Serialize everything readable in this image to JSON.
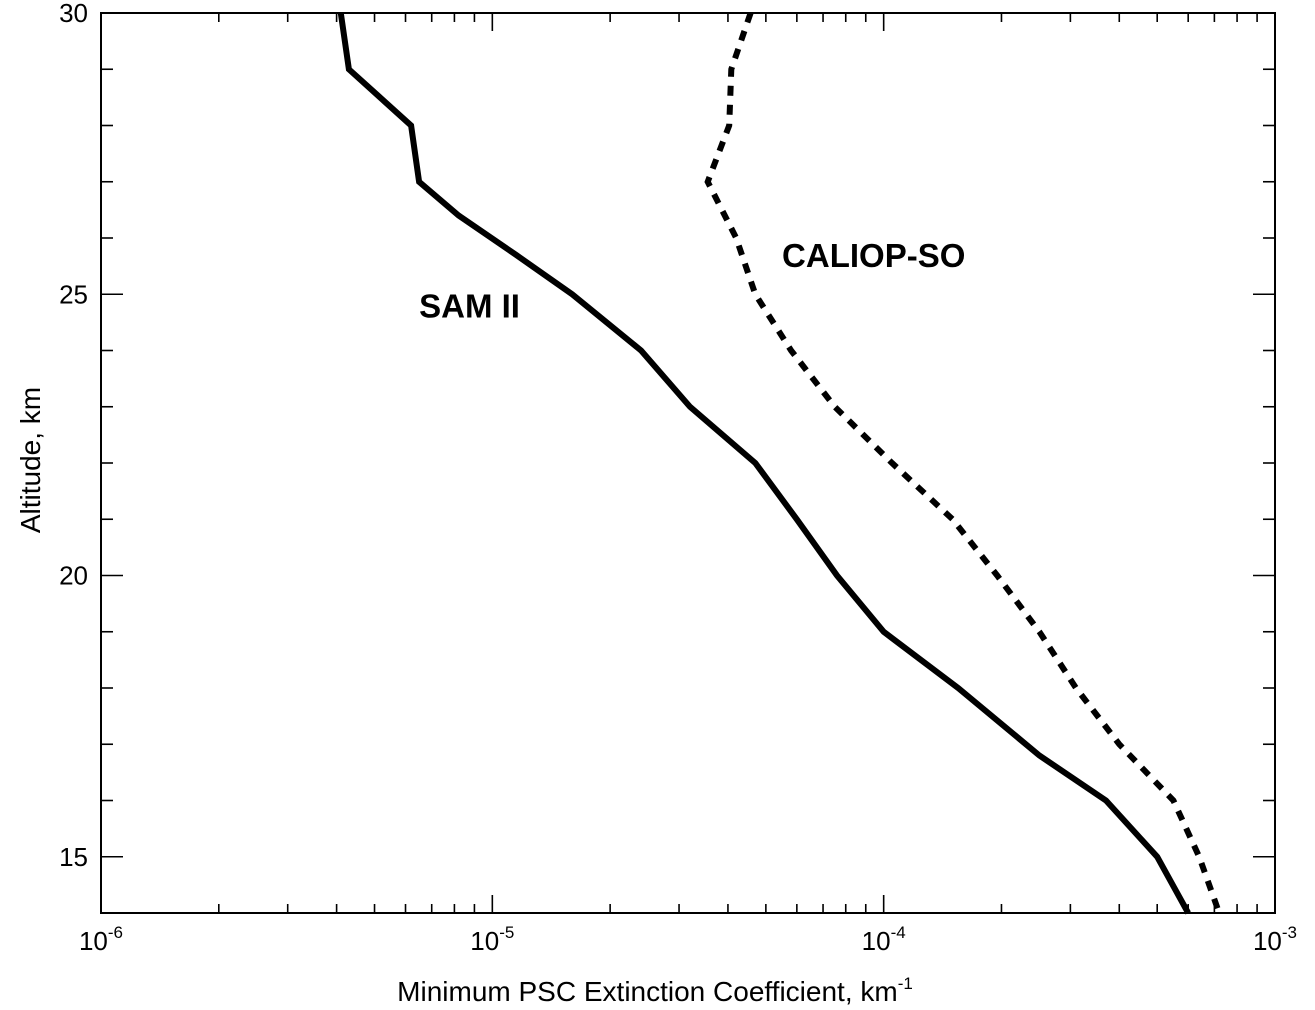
{
  "chart_data": {
    "type": "line",
    "x_scale": "log",
    "xlim": [
      1e-06,
      0.001
    ],
    "ylim": [
      14,
      30
    ],
    "xlabel": "Minimum PSC Extinction Coefficient, km",
    "xlabel_sup": "-1",
    "ylabel": "Altitude, km",
    "x_tick_labels": [
      {
        "value": 1e-06,
        "base": "10",
        "exp": "-6"
      },
      {
        "value": 1e-05,
        "base": "10",
        "exp": "-5"
      },
      {
        "value": 0.0001,
        "base": "10",
        "exp": "-4"
      },
      {
        "value": 0.001,
        "base": "10",
        "exp": "-3"
      }
    ],
    "y_ticks": [
      15,
      20,
      25,
      30
    ],
    "y_minor_step": 1,
    "grid": false,
    "series": [
      {
        "name": "SAM II",
        "style": "solid",
        "color": "#000000",
        "points": [
          {
            "x": 4.1e-06,
            "y": 30
          },
          {
            "x": 4.3e-06,
            "y": 29
          },
          {
            "x": 6.2e-06,
            "y": 28
          },
          {
            "x": 6.5e-06,
            "y": 27
          },
          {
            "x": 8.2e-06,
            "y": 26.4
          },
          {
            "x": 1.15e-05,
            "y": 25.7
          },
          {
            "x": 1.6e-05,
            "y": 25
          },
          {
            "x": 2.4e-05,
            "y": 24
          },
          {
            "x": 3.2e-05,
            "y": 23
          },
          {
            "x": 4.7e-05,
            "y": 22
          },
          {
            "x": 6e-05,
            "y": 21
          },
          {
            "x": 7.6e-05,
            "y": 20
          },
          {
            "x": 0.0001,
            "y": 19
          },
          {
            "x": 0.000155,
            "y": 18
          },
          {
            "x": 0.00025,
            "y": 16.8
          },
          {
            "x": 0.00037,
            "y": 16
          },
          {
            "x": 0.0005,
            "y": 15
          },
          {
            "x": 0.0006,
            "y": 14
          }
        ]
      },
      {
        "name": "CALIOP-SO",
        "style": "dotted",
        "color": "#000000",
        "points": [
          {
            "x": 4.57e-05,
            "y": 30
          },
          {
            "x": 4.08e-05,
            "y": 29
          },
          {
            "x": 4.03e-05,
            "y": 28
          },
          {
            "x": 3.55e-05,
            "y": 27
          },
          {
            "x": 4.2e-05,
            "y": 26
          },
          {
            "x": 4.7e-05,
            "y": 25
          },
          {
            "x": 5.8e-05,
            "y": 24
          },
          {
            "x": 7.5e-05,
            "y": 23
          },
          {
            "x": 0.000105,
            "y": 22
          },
          {
            "x": 0.00015,
            "y": 21
          },
          {
            "x": 0.000195,
            "y": 20
          },
          {
            "x": 0.00025,
            "y": 19
          },
          {
            "x": 0.00031,
            "y": 18
          },
          {
            "x": 0.0004,
            "y": 17
          },
          {
            "x": 0.00055,
            "y": 16
          },
          {
            "x": 0.00064,
            "y": 15
          },
          {
            "x": 0.00072,
            "y": 14
          }
        ]
      }
    ],
    "annotations": [
      {
        "text": "SAM II",
        "x": 6.5e-06,
        "y": 24.8
      },
      {
        "text": "CALIOP-SO",
        "x": 5.5e-05,
        "y": 25.7
      }
    ]
  }
}
